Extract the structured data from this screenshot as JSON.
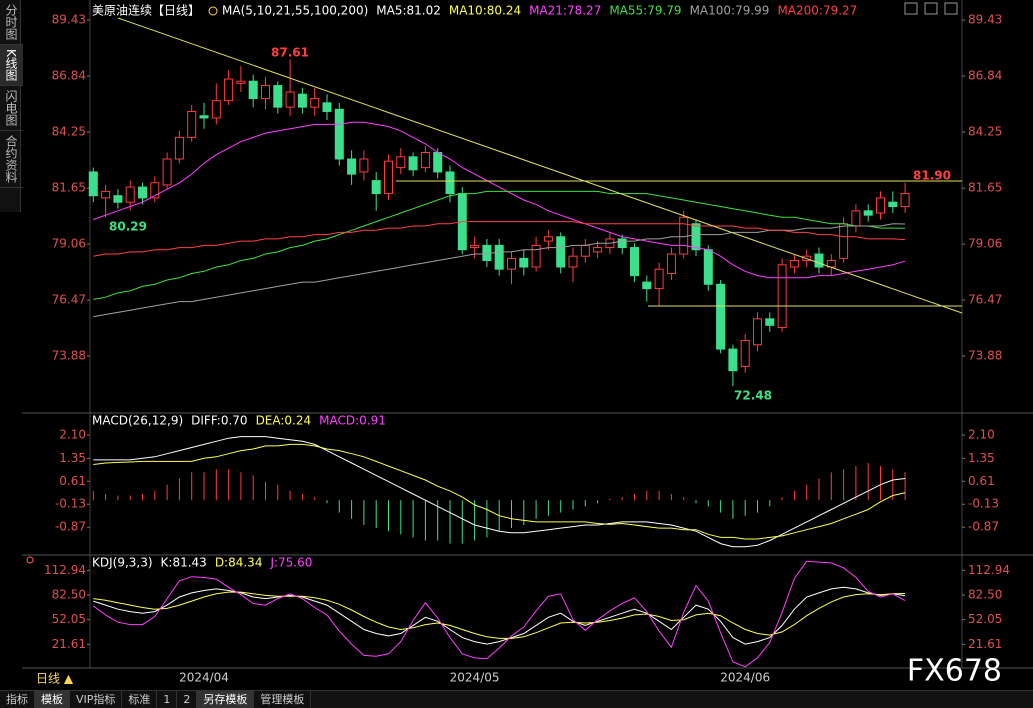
{
  "sidebar": [
    "分时图",
    "K线图",
    "闪电图",
    "合约资料"
  ],
  "chart_data": [
    {
      "type": "candlestick",
      "title": "美原油连续【日线】",
      "indicator": "MA(5,10,21,55,100,200)",
      "labels": [
        {
          "text": "MA5:81.02",
          "color": "#ffffff"
        },
        {
          "text": "MA10:80.24",
          "color": "#ffff50"
        }
      ],
      "categories": [
        null,
        null,
        null,
        null,
        null,
        null,
        null,
        null,
        null,
        "2024/04",
        null,
        null,
        null,
        null,
        null,
        null,
        null,
        null,
        null,
        null,
        null,
        null,
        null,
        null,
        null,
        null,
        null,
        null,
        null,
        null,
        null,
        "2024/05",
        null,
        null,
        null,
        null,
        null,
        null,
        null,
        null,
        null,
        null,
        null,
        null,
        null,
        null,
        null,
        null,
        null,
        null,
        null,
        null,
        null,
        "2024/06",
        null,
        null,
        null,
        null,
        null,
        null,
        null,
        null,
        null,
        null,
        null,
        null,
        null
      ],
      "open": [
        82.4,
        81.2,
        81.3,
        81.0,
        81.7,
        81.2,
        81.8,
        83.0,
        84.0,
        85.0,
        84.9,
        85.7,
        86.5,
        86.6,
        85.8,
        86.4,
        85.4,
        86.0,
        85.4,
        85.6,
        85.3,
        83.0,
        82.4,
        82.0,
        81.4,
        82.6,
        83.1,
        82.6,
        83.3,
        82.4,
        81.4,
        78.9,
        79.0,
        79.0,
        77.9,
        78.4,
        78.0,
        79.2,
        79.4,
        78.0,
        78.5,
        78.7,
        78.9,
        79.3,
        78.9,
        77.3,
        77.0,
        77.7,
        78.6,
        80.0,
        78.8,
        77.2,
        74.2,
        73.4,
        74.4,
        75.6,
        75.2,
        78.0,
        78.3,
        78.6,
        78.0,
        78.4,
        79.9,
        80.6,
        80.5,
        81.0,
        80.8
      ],
      "high": [
        82.6,
        81.8,
        81.6,
        82.0,
        81.9,
        82.2,
        83.3,
        84.3,
        85.5,
        85.6,
        86.5,
        87.1,
        87.3,
        86.9,
        86.8,
        86.6,
        87.61,
        86.3,
        86.3,
        86.0,
        85.6,
        83.4,
        83.4,
        82.4,
        83.2,
        83.5,
        83.3,
        83.6,
        83.5,
        82.7,
        81.7,
        79.4,
        79.3,
        79.3,
        78.7,
        78.8,
        79.4,
        79.7,
        79.6,
        78.9,
        79.3,
        79.2,
        79.6,
        79.5,
        79.1,
        77.6,
        78.2,
        78.9,
        80.6,
        80.2,
        79.0,
        77.4,
        74.4,
        74.9,
        75.9,
        75.9,
        78.4,
        78.6,
        78.8,
        78.9,
        78.6,
        80.3,
        80.9,
        80.9,
        81.5,
        81.5,
        81.9
      ],
      "low": [
        81.0,
        80.29,
        80.7,
        80.6,
        80.9,
        81.0,
        81.6,
        82.8,
        83.8,
        84.4,
        84.6,
        85.5,
        86.1,
        85.4,
        85.3,
        85.1,
        85.0,
        85.1,
        85.0,
        84.8,
        82.7,
        81.8,
        82.0,
        80.6,
        81.1,
        82.3,
        82.2,
        82.4,
        82.1,
        81.0,
        78.6,
        78.4,
        78.0,
        77.6,
        77.2,
        77.6,
        77.8,
        78.8,
        77.7,
        77.3,
        78.2,
        78.4,
        78.6,
        78.6,
        77.3,
        76.4,
        76.2,
        77.4,
        78.4,
        78.5,
        76.9,
        74.0,
        72.48,
        73.1,
        74.1,
        75.0,
        75.0,
        77.7,
        78.0,
        77.7,
        77.6,
        78.2,
        79.6,
        80.1,
        80.2,
        80.5,
        80.5
      ],
      "close": [
        81.3,
        81.5,
        81.0,
        81.7,
        81.2,
        81.9,
        83.0,
        84.0,
        85.2,
        84.9,
        85.7,
        86.7,
        86.6,
        85.8,
        86.4,
        85.4,
        86.1,
        85.4,
        85.8,
        85.2,
        83.0,
        82.3,
        83.0,
        81.4,
        82.9,
        83.1,
        82.5,
        83.3,
        82.4,
        81.4,
        78.8,
        79.0,
        78.3,
        77.9,
        78.4,
        78.0,
        79.0,
        79.4,
        78.0,
        78.5,
        79.0,
        78.9,
        79.3,
        78.9,
        77.6,
        77.0,
        77.9,
        78.6,
        80.3,
        78.8,
        77.2,
        74.2,
        73.2,
        74.6,
        75.6,
        75.3,
        78.1,
        78.3,
        78.5,
        78.0,
        78.3,
        80.0,
        80.6,
        80.4,
        81.2,
        80.8,
        81.4
      ],
      "up_color": "#ff3c3c",
      "down_color": "#3ce08c",
      "series": [
        {
          "name": "MA21:78.27",
          "color": "#ff40ff",
          "values": [
            80.2,
            80.4,
            80.6,
            80.8,
            81.0,
            81.3,
            81.6,
            81.9,
            82.3,
            82.8,
            83.2,
            83.5,
            83.8,
            84.0,
            84.2,
            84.3,
            84.4,
            84.5,
            84.6,
            84.6,
            84.6,
            84.7,
            84.7,
            84.6,
            84.5,
            84.3,
            84.0,
            83.7,
            83.3,
            83.0,
            82.6,
            82.3,
            82.0,
            81.7,
            81.4,
            81.1,
            80.9,
            80.6,
            80.4,
            80.2,
            80.0,
            79.8,
            79.6,
            79.4,
            79.3,
            79.2,
            79.1,
            79.0,
            79.0,
            78.9,
            78.8,
            78.5,
            78.1,
            77.8,
            77.6,
            77.5,
            77.5,
            77.5,
            77.5,
            77.6,
            77.6,
            77.7,
            77.8,
            77.9,
            78.0,
            78.1,
            78.27
          ]
        },
        {
          "name": "MA55:79.79",
          "color": "#40e040",
          "values": [
            76.5,
            76.6,
            76.8,
            76.9,
            77.1,
            77.2,
            77.4,
            77.5,
            77.7,
            77.8,
            78.0,
            78.1,
            78.3,
            78.4,
            78.6,
            78.7,
            78.9,
            79.0,
            79.2,
            79.3,
            79.5,
            79.7,
            79.9,
            80.1,
            80.3,
            80.5,
            80.7,
            80.9,
            81.1,
            81.3,
            81.4,
            81.4,
            81.5,
            81.5,
            81.5,
            81.5,
            81.5,
            81.5,
            81.5,
            81.5,
            81.5,
            81.5,
            81.4,
            81.4,
            81.4,
            81.4,
            81.3,
            81.2,
            81.1,
            81.0,
            80.9,
            80.8,
            80.7,
            80.6,
            80.5,
            80.4,
            80.3,
            80.3,
            80.2,
            80.1,
            80.0,
            80.0,
            79.9,
            79.9,
            79.8,
            79.8,
            79.79
          ]
        },
        {
          "name": "MA100:79.99",
          "color": "#a0a0a0",
          "values": [
            75.7,
            75.8,
            75.9,
            76.0,
            76.1,
            76.2,
            76.3,
            76.4,
            76.4,
            76.5,
            76.6,
            76.7,
            76.8,
            76.9,
            77.0,
            77.1,
            77.2,
            77.3,
            77.3,
            77.4,
            77.5,
            77.6,
            77.7,
            77.8,
            77.9,
            78.0,
            78.1,
            78.2,
            78.3,
            78.4,
            78.5,
            78.6,
            78.6,
            78.7,
            78.7,
            78.8,
            78.8,
            78.9,
            78.9,
            79.0,
            79.0,
            79.1,
            79.1,
            79.2,
            79.2,
            79.3,
            79.3,
            79.4,
            79.4,
            79.5,
            79.5,
            79.5,
            79.6,
            79.6,
            79.6,
            79.7,
            79.7,
            79.7,
            79.8,
            79.8,
            79.8,
            79.9,
            79.9,
            79.9,
            79.9,
            80.0,
            79.99
          ]
        },
        {
          "name": "MA200:79.27",
          "color": "#ff4040",
          "values": [
            78.5,
            78.6,
            78.6,
            78.7,
            78.7,
            78.8,
            78.8,
            78.9,
            78.9,
            79.0,
            79.0,
            79.1,
            79.2,
            79.2,
            79.3,
            79.3,
            79.4,
            79.4,
            79.5,
            79.5,
            79.6,
            79.6,
            79.7,
            79.7,
            79.8,
            79.8,
            79.9,
            79.9,
            80.0,
            80.0,
            80.1,
            80.1,
            80.1,
            80.1,
            80.1,
            80.1,
            80.1,
            80.1,
            80.1,
            80.1,
            80.0,
            80.0,
            80.0,
            80.0,
            80.0,
            80.0,
            80.0,
            80.0,
            80.0,
            79.9,
            79.9,
            79.9,
            79.9,
            79.8,
            79.8,
            79.7,
            79.7,
            79.6,
            79.6,
            79.5,
            79.5,
            79.4,
            79.4,
            79.3,
            79.3,
            79.3,
            79.27
          ]
        }
      ],
      "annotations": [
        {
          "text": "87.61",
          "color": "#ff4040"
        },
        {
          "text": "80.29",
          "color": "#40e080"
        },
        {
          "text": "81.90",
          "color": "#ff4040"
        },
        {
          "text": "72.48",
          "color": "#40e080"
        }
      ],
      "ylim": [
        71.38,
        89.99
      ],
      "yticks": [
        89.43,
        86.84,
        84.25,
        81.65,
        79.06,
        76.47,
        73.88
      ]
    },
    {
      "type": "macd",
      "title": "MACD(26,12,9)",
      "series": [
        {
          "name": "DIFF:0.70",
          "color": "#ffffff",
          "values": [
            1.3,
            1.3,
            1.3,
            1.3,
            1.35,
            1.4,
            1.5,
            1.6,
            1.7,
            1.8,
            1.9,
            2.0,
            2.05,
            2.05,
            2.05,
            2.0,
            1.95,
            1.9,
            1.8,
            1.6,
            1.4,
            1.2,
            1.0,
            0.8,
            0.6,
            0.4,
            0.2,
            0.0,
            -0.2,
            -0.4,
            -0.6,
            -0.8,
            -0.9,
            -1.0,
            -1.05,
            -1.05,
            -1.0,
            -0.95,
            -0.9,
            -0.85,
            -0.8,
            -0.8,
            -0.75,
            -0.7,
            -0.7,
            -0.7,
            -0.75,
            -0.8,
            -0.9,
            -1.0,
            -1.2,
            -1.4,
            -1.5,
            -1.5,
            -1.45,
            -1.3,
            -1.1,
            -0.9,
            -0.7,
            -0.5,
            -0.3,
            -0.1,
            0.1,
            0.3,
            0.5,
            0.65,
            0.7
          ]
        },
        {
          "name": "DEA:0.24",
          "color": "#ffff50",
          "values": [
            1.15,
            1.2,
            1.22,
            1.23,
            1.25,
            1.25,
            1.25,
            1.25,
            1.25,
            1.35,
            1.4,
            1.5,
            1.6,
            1.65,
            1.75,
            1.75,
            1.8,
            1.8,
            1.75,
            1.65,
            1.6,
            1.5,
            1.4,
            1.25,
            1.1,
            0.95,
            0.8,
            0.65,
            0.45,
            0.3,
            0.1,
            -0.15,
            -0.3,
            -0.5,
            -0.6,
            -0.65,
            -0.7,
            -0.7,
            -0.7,
            -0.7,
            -0.7,
            -0.75,
            -0.78,
            -0.75,
            -0.8,
            -0.85,
            -0.9,
            -0.9,
            -0.95,
            -0.95,
            -1.1,
            -1.2,
            -1.2,
            -1.25,
            -1.25,
            -1.2,
            -1.15,
            -1.05,
            -0.95,
            -0.85,
            -0.75,
            -0.6,
            -0.45,
            -0.3,
            -0.05,
            0.15,
            0.24
          ]
        }
      ],
      "histogram": {
        "name": "MACD:0.91",
        "color": "#ff40ff",
        "up_color": "#ff3c3c",
        "down_color": "#3ce08c",
        "values": [
          0.3,
          0.2,
          0.15,
          0.15,
          0.2,
          0.3,
          0.5,
          0.7,
          0.9,
          0.9,
          1.0,
          1.0,
          0.9,
          0.8,
          0.6,
          0.5,
          0.3,
          0.2,
          0.1,
          -0.1,
          -0.4,
          -0.6,
          -0.8,
          -0.9,
          -1.0,
          -1.1,
          -1.2,
          -1.3,
          -1.3,
          -1.4,
          -1.4,
          -1.3,
          -1.2,
          -1.0,
          -0.9,
          -0.8,
          -0.6,
          -0.5,
          -0.4,
          -0.3,
          -0.2,
          -0.1,
          0.05,
          0.1,
          0.2,
          0.3,
          0.3,
          0.2,
          0.1,
          -0.1,
          -0.2,
          -0.4,
          -0.6,
          -0.5,
          -0.4,
          -0.2,
          0.1,
          0.3,
          0.5,
          0.7,
          0.9,
          1.0,
          1.1,
          1.2,
          1.1,
          1.0,
          0.91
        ]
      },
      "ylim": [
        -1.67,
        2.65
      ],
      "yticks": [
        {
          "value": 2.1,
          "label": "2.10"
        },
        1.35,
        0.61,
        -0.13,
        -0.87
      ]
    },
    {
      "type": "kdj",
      "title": "KDJ(9,3,3)",
      "series": [
        {
          "name": "K:81.43",
          "color": "#ffffff",
          "values": [
            75,
            70,
            65,
            62,
            60,
            62,
            70,
            80,
            85,
            88,
            90,
            88,
            85,
            80,
            78,
            80,
            82,
            80,
            75,
            70,
            60,
            50,
            40,
            35,
            32,
            35,
            45,
            55,
            50,
            40,
            30,
            25,
            22,
            25,
            30,
            35,
            45,
            55,
            60,
            50,
            45,
            50,
            55,
            60,
            65,
            60,
            50,
            40,
            55,
            70,
            65,
            50,
            30,
            22,
            25,
            30,
            45,
            65,
            80,
            85,
            90,
            92,
            90,
            85,
            82,
            84,
            81.43
          ]
        },
        {
          "name": "D:84.34",
          "color": "#ffff50",
          "values": [
            78,
            76,
            73,
            70,
            67,
            65,
            66,
            70,
            75,
            80,
            84,
            86,
            86,
            84,
            82,
            81,
            81,
            81,
            79,
            76,
            71,
            64,
            56,
            49,
            43,
            40,
            42,
            46,
            48,
            45,
            40,
            35,
            31,
            29,
            29,
            31,
            36,
            42,
            48,
            49,
            48,
            49,
            51,
            54,
            58,
            59,
            56,
            51,
            52,
            58,
            60,
            57,
            48,
            40,
            35,
            33,
            37,
            46,
            57,
            66,
            74,
            80,
            83,
            84,
            83,
            84,
            84.34
          ]
        },
        {
          "name": "J:75.60",
          "color": "#ff40ff",
          "values": [
            69,
            58,
            49,
            46,
            46,
            56,
            78,
            100,
            105,
            104,
            102,
            92,
            83,
            72,
            70,
            78,
            84,
            78,
            67,
            58,
            38,
            22,
            8,
            7,
            10,
            25,
            51,
            73,
            54,
            30,
            10,
            5,
            4,
            17,
            32,
            43,
            63,
            81,
            84,
            52,
            39,
            52,
            63,
            72,
            79,
            62,
            38,
            18,
            61,
            94,
            75,
            36,
            0,
            -6,
            5,
            24,
            61,
            103,
            124,
            123,
            122,
            116,
            104,
            87,
            80,
            84,
            75.6
          ]
        }
      ],
      "ylim": [
        -7.5,
        125.6
      ],
      "yticks": [
        112.94,
        {
          "value": 82.5,
          "label": "82.50"
        },
        52.05,
        21.61
      ]
    }
  ],
  "period": "日线 ▲",
  "footer": [
    "指标",
    "模板",
    "VIP指标",
    "标准",
    "1",
    "2",
    "另存模板",
    "管理模板"
  ],
  "watermark": "FX678"
}
